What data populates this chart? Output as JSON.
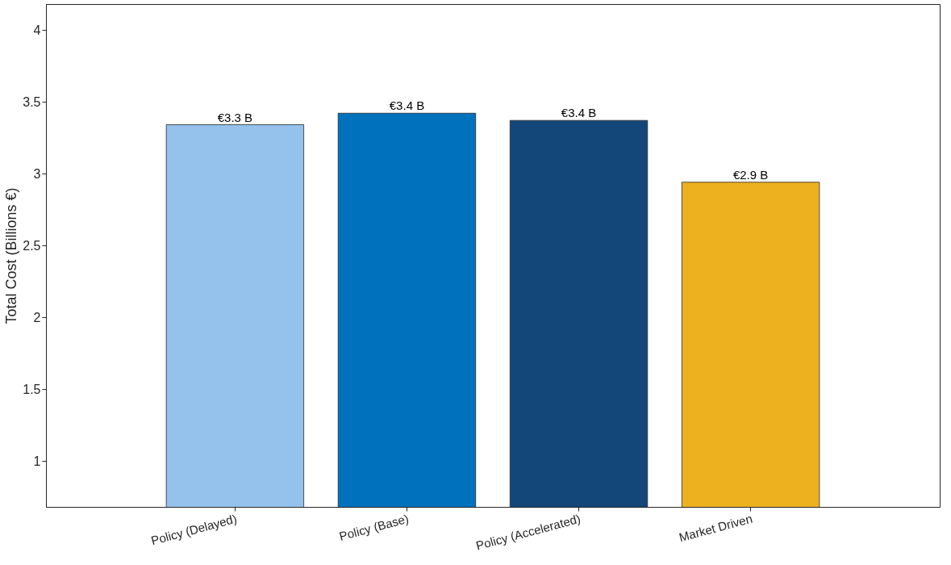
{
  "chart_data": {
    "type": "bar",
    "ylabel": "Total Cost (Billions €)",
    "categories": [
      "Policy (Delayed)",
      "Policy (Base)",
      "Policy (Accelerated)",
      "Market Driven"
    ],
    "values": [
      3.34,
      3.42,
      3.37,
      2.94
    ],
    "colors": [
      "#95c2ec",
      "#0072bd",
      "#13477a",
      "#edb120"
    ],
    "value_labels": [
      "€3.3 B",
      "€3.4 B",
      "€3.4 B",
      "€2.9 B"
    ],
    "ylim": [
      0.68,
      4.18
    ],
    "yticks": [
      1,
      1.5,
      2,
      2.5,
      3,
      3.5,
      4
    ],
    "grid": false
  }
}
